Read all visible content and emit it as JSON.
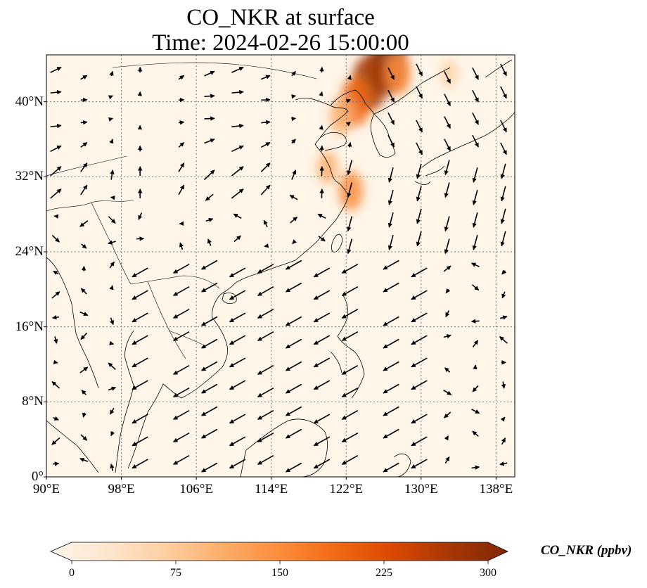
{
  "title": {
    "line1": "CO_NKR at surface",
    "line2": "Time: 2024-02-26 15:00:00"
  },
  "map": {
    "extent": {
      "lon": [
        90,
        140
      ],
      "lat": [
        0,
        45
      ]
    },
    "xticks": [
      {
        "lon": 90,
        "label": "90°E"
      },
      {
        "lon": 98,
        "label": "98°E"
      },
      {
        "lon": 106,
        "label": "106°E"
      },
      {
        "lon": 114,
        "label": "114°E"
      },
      {
        "lon": 122,
        "label": "122°E"
      },
      {
        "lon": 130,
        "label": "130°E"
      },
      {
        "lon": 138,
        "label": "138°E"
      }
    ],
    "yticks": [
      {
        "lat": 0,
        "label": "0°"
      },
      {
        "lat": 8,
        "label": "8°N"
      },
      {
        "lat": 16,
        "label": "16°N"
      },
      {
        "lat": 24,
        "label": "24°N"
      },
      {
        "lat": 32,
        "label": "32°N"
      },
      {
        "lat": 40,
        "label": "40°N"
      }
    ],
    "gridlines": true,
    "background_color": "#fff5e8",
    "coastline_color": "#000000"
  },
  "colorbar": {
    "label": "CO_NKR (ppbv)",
    "min": 0,
    "max": 300,
    "extend": "both",
    "ticks": [
      {
        "value": 0,
        "label": "0"
      },
      {
        "value": 75,
        "label": "75"
      },
      {
        "value": 150,
        "label": "150"
      },
      {
        "value": 225,
        "label": "225"
      },
      {
        "value": 300,
        "label": "300"
      }
    ],
    "colors": [
      "#fff5eb",
      "#fee6ce",
      "#fdd0a2",
      "#fdae6b",
      "#fd8d3c",
      "#f16913",
      "#d94801",
      "#a63603",
      "#7f2704"
    ]
  },
  "chart_data": {
    "type": "heatmap",
    "variable": "CO_NKR",
    "units": "ppbv",
    "level": "surface",
    "time": "2024-02-26 15:00:00",
    "hotspots": [
      {
        "lon": 126.5,
        "lat": 44,
        "value": 290
      },
      {
        "lon": 124.5,
        "lat": 42,
        "value": 250
      },
      {
        "lon": 123,
        "lat": 40,
        "value": 200
      },
      {
        "lon": 127.5,
        "lat": 43,
        "value": 160
      },
      {
        "lon": 121.5,
        "lat": 38.5,
        "value": 130
      },
      {
        "lon": 122.5,
        "lat": 30.5,
        "value": 140
      },
      {
        "lon": 120,
        "lat": 33,
        "value": 95
      },
      {
        "lon": 133,
        "lat": 43,
        "value": 60
      }
    ],
    "wind_vectors": "quiver arrows over domain"
  }
}
